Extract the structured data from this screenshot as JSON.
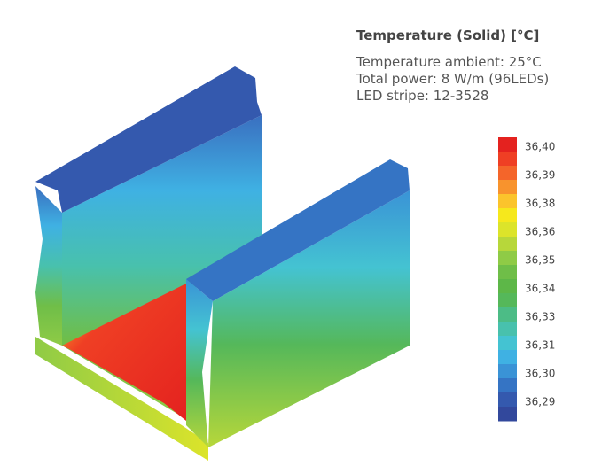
{
  "title": "Temperature (Solid) [°C]",
  "info": [
    "Temperature ambient: 25°C",
    "Total power: 8 W/m (96LEDs)",
    "LED stripe: 12-3528"
  ],
  "legend": {
    "labels": [
      "36,40",
      "36,39",
      "36,38",
      "36,36",
      "36,35",
      "36,34",
      "36,33",
      "36,31",
      "36,30",
      "36,29"
    ],
    "colors": [
      "#e4221f",
      "#ef3f24",
      "#f4652a",
      "#f8932d",
      "#fbc42c",
      "#f6e81c",
      "#dce42a",
      "#b7d73a",
      "#8fcb46",
      "#6fbe48",
      "#5db748",
      "#55b85a",
      "#4cbc86",
      "#48c1ad",
      "#44c3d2",
      "#3fb1e3",
      "#3a93d6",
      "#3574c4",
      "#3459ae",
      "#32489c"
    ]
  }
}
